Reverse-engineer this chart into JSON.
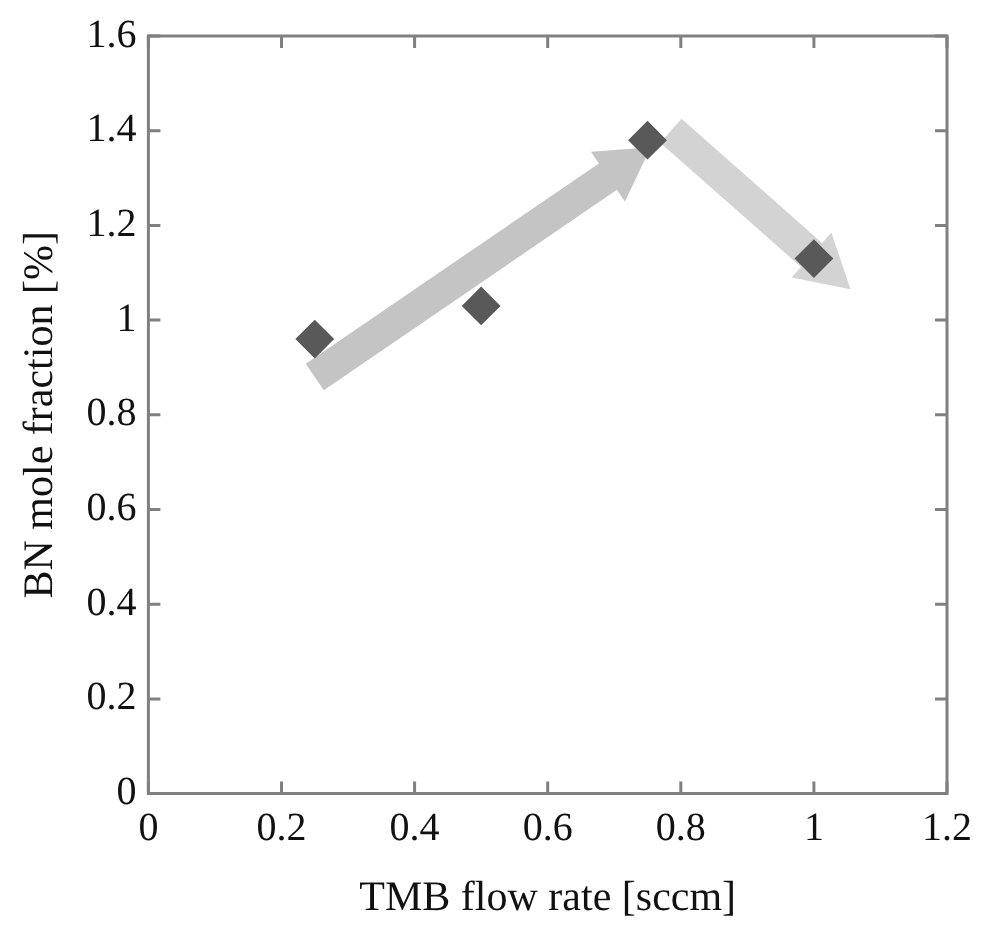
{
  "chart_data": {
    "type": "scatter",
    "xlabel": "TMB flow rate [sccm]",
    "ylabel": "BN mole fraction [%]",
    "x": [
      0.25,
      0.5,
      0.75,
      1.0
    ],
    "series": [
      {
        "color": "#595959",
        "values": [
          0.96,
          1.03,
          1.38,
          1.13
        ]
      }
    ],
    "xlim": [
      0,
      1.2
    ],
    "xticks": [
      0,
      0.2,
      0.4,
      0.6,
      0.8,
      1,
      1.2
    ],
    "ylim": [
      0,
      1.6
    ],
    "yticks": [
      0,
      0.2,
      0.4,
      0.6,
      0.8,
      1,
      1.2,
      1.4,
      1.6
    ],
    "grid": false,
    "legend": false,
    "marker": "diamond"
  }
}
